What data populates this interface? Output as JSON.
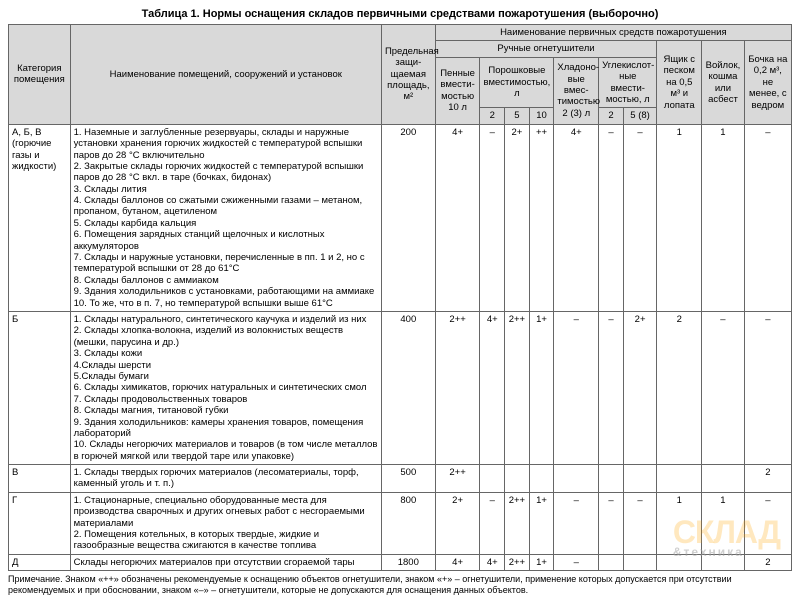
{
  "title": "Таблица 1. Нормы оснащения складов первичными средствами пожаротушения (выборочно)",
  "headers": {
    "cat": "Категория помещения",
    "name": "Наименование помещений, сооружений и установок",
    "area": "Предельная защи­щаемая площадь, м²",
    "group": "Наименование первичных средств пожаротушения",
    "manual": "Ручные огнетушители",
    "penn": "Пенные вмести­мостью 10 л",
    "powder": "Порошковые вместимос­тью, л",
    "hlad": "Хладоно­вые вмес­тимостью 2 (3) л",
    "co2": "Углекислот­ные вмести­мостью, л",
    "sand": "Ящик с песком на 0,5 м³ и лопата",
    "felt": "Войлок, кошма или асбест",
    "barrel": "Бочка на 0,2 м³, не менее, с ведром",
    "p2": "2",
    "p5": "5",
    "p10": "10",
    "c2": "2",
    "c58": "5 (8)"
  },
  "rows": [
    {
      "cat": "А, Б, В (горючие газы и жидкости)",
      "desc": "1. Наземные и заглубленные резервуары, склады и наружные установ­ки хранения горючих жидкостей с температурой вспышки паров до 28 °С включительно\n2. Закрытые склады горючих жидкостей с температурой вспышки паров до 28 °С вкл. в таре (бочках, бидонах)\n3. Склады лития\n4. Склады баллонов со сжатыми сжиженными газами – метаном, про­паном, бутаном, ацетиленом\n5. Склады карбида кальция\n6. Помещения зарядных станций щелочных и кислотных аккумуляторов\n7. Склады и наружные установки, перечисленные в пп. 1 и 2, но с тем­пературой вспышки от 28 до 61°С\n8. Склады баллонов с аммиаком\n9. Здания холодильников с установками, работающими на аммиаке\n10. То же, что в п. 7, но температурой вспышки выше 61°С",
      "area": "200",
      "penn": "4+",
      "p2": "–",
      "p5": "2+",
      "p10": "++",
      "hlad": "4+",
      "c2": "–",
      "c58": "–",
      "sand": "1",
      "felt": "1",
      "barrel": "–"
    },
    {
      "cat": "Б",
      "desc": "1. Склады натурального, синтетического каучука и изделий из них\n2. Склады хлопка-волокна, изделий из волокнистых веществ (мешки, парусина и др.)\n3. Склады кожи\n4.Склады шерсти\n5.Склады бумаги\n6. Склады химикатов, горючих натуральных и синтетических смол\n7. Склады продовольственных товаров\n8. Склады магния, титановой губки\n9. Здания холодильников: камеры хранения товаров, помещения лабо­раторий\n10. Склады негорючих материалов и товаров (в том числе металлов в горючей мягкой или твердой таре или упаковке)",
      "area": "400",
      "penn": "2++",
      "p2": "4+",
      "p5": "2++",
      "p10": "1+",
      "hlad": "–",
      "c2": "–",
      "c58": "2+",
      "sand": "2",
      "felt": "–",
      "barrel": "–"
    },
    {
      "cat": "В",
      "desc": "1. Склады твердых горючих материалов (лесоматериалы, торф, каменный уголь и т. п.)",
      "area": "500",
      "penn": "2++",
      "p2": "",
      "p5": "",
      "p10": "",
      "hlad": "",
      "c2": "",
      "c58": "",
      "sand": "",
      "felt": "",
      "barrel": "2"
    },
    {
      "cat": "Г",
      "desc": "1. Стационарные, специально оборудованные места для производства сварочных и других огневых работ с несгораемыми материалами\n2. Помещения котельных, в которых твердые, жидкие и газообразные ве­щества сжигаются в качестве топлива",
      "area": "800",
      "penn": "2+",
      "p2": "–",
      "p5": "2++",
      "p10": "1+",
      "hlad": "–",
      "c2": "–",
      "c58": "–",
      "sand": "1",
      "felt": "1",
      "barrel": "–"
    },
    {
      "cat": "Д",
      "desc": "Склады негорючих материалов при отсутствии сгораемой тары",
      "area": "1800",
      "penn": "4+",
      "p2": "4+",
      "p5": "2++",
      "p10": "1+",
      "hlad": "–",
      "c2": "",
      "c58": "",
      "sand": "",
      "felt": "",
      "barrel": "2"
    }
  ],
  "footnote": "Примечание. Знаком «++» обозначены рекомендуемые к оснащению объектов огнетушители, знаком «+» – огнетушители, применение которых допускается при отсутствии рекомендуемых и при обосновании, знаком «–» – огнетушители, которые не допускаются для оснащения данных объектов.",
  "watermark": "СКЛАД",
  "watermark_sub": "&техника"
}
